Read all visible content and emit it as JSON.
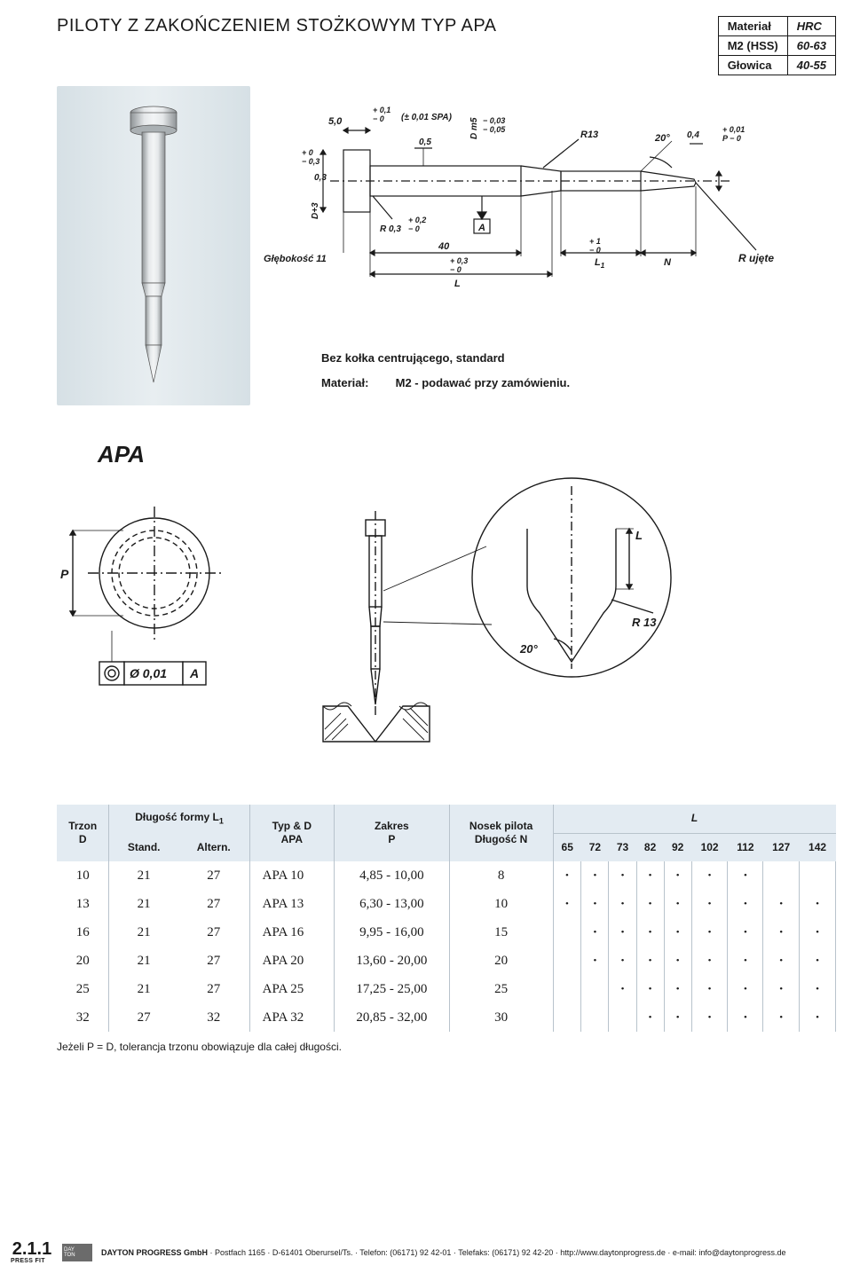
{
  "header": {
    "title_light": "PILOTY Z",
    "title_bold": "ZAKOŃCZENIEM STOŻKOWYM TYP APA",
    "material_rows": [
      {
        "l": "Materiał",
        "r": "HRC"
      },
      {
        "l": "M2 (HSS)",
        "r": "60-63"
      },
      {
        "l": "Głowica",
        "r": "40-55"
      }
    ]
  },
  "tech_drawing": {
    "dim_50": "5,0",
    "tol_50": "+ 0,1\n− 0",
    "spa": "(± 0,01 SPA)",
    "dim_03": "0,3",
    "tol_03": "+ 0\n− 0,3",
    "d_plus3": "D+3",
    "dim_05": "0,5",
    "d_m5": "D m5",
    "tol_dm5": "− 0,03\n− 0,05",
    "r13": "R13",
    "angle": "20°",
    "dim_04": "0,4",
    "p_tol": "+ 0,01\nP − 0",
    "r03": "R 0,3",
    "tol_r03": "+ 0,2\n− 0",
    "a_box": "A",
    "depth": "Głębokość 11",
    "dim_40": "40",
    "l_tol": "+ 0,3\n− 0",
    "l_label": "L",
    "l1_label": "L₁",
    "l1_tol": "+ 1\n− 0",
    "n_label": "N",
    "r_ujete": "R ujęte"
  },
  "notes": {
    "line1": "Bez kołka centrującego, standard",
    "line2_label": "Materiał:",
    "line2_value": "M2 - podawać przy zamówieniu."
  },
  "apa": {
    "heading": "APA",
    "p_label": "P",
    "conc": "Ø 0,01",
    "conc_a": "A",
    "tip_angle": "20°",
    "tip_l": "L",
    "tip_r": "R 13"
  },
  "table": {
    "headers": {
      "trzon": "Trzon\nD",
      "l1": "Długość formy L₁",
      "l1_sub1": "Stand.",
      "l1_sub2": "Altern.",
      "typ": "Typ & D\nAPA",
      "zakres": "Zakres\nP",
      "nosek": "Nosek pilota\nDługość N",
      "l_group": "L",
      "l_cols": [
        "65",
        "72",
        "73",
        "82",
        "92",
        "102",
        "112",
        "127",
        "142"
      ]
    },
    "rows": [
      {
        "d": "10",
        "stand": "21",
        "alt": "27",
        "typ": "APA 10",
        "zakres": "4,85 - 10,00",
        "n": "8",
        "dots": [
          "•",
          "•",
          "•",
          "•",
          "•",
          "•",
          "•",
          "",
          ""
        ]
      },
      {
        "d": "13",
        "stand": "21",
        "alt": "27",
        "typ": "APA 13",
        "zakres": "6,30 - 13,00",
        "n": "10",
        "dots": [
          "•",
          "•",
          "•",
          "•",
          "•",
          "•",
          "•",
          "•",
          "•"
        ]
      },
      {
        "d": "16",
        "stand": "21",
        "alt": "27",
        "typ": "APA 16",
        "zakres": "9,95 - 16,00",
        "n": "15",
        "dots": [
          "",
          "•",
          "•",
          "•",
          "•",
          "•",
          "•",
          "•",
          "•"
        ]
      },
      {
        "d": "20",
        "stand": "21",
        "alt": "27",
        "typ": "APA 20",
        "zakres": "13,60 - 20,00",
        "n": "20",
        "dots": [
          "",
          "•",
          "•",
          "•",
          "•",
          "•",
          "•",
          "•",
          "•"
        ]
      },
      {
        "d": "25",
        "stand": "21",
        "alt": "27",
        "typ": "APA 25",
        "zakres": "17,25 - 25,00",
        "n": "25",
        "dots": [
          "",
          "",
          "•",
          "•",
          "•",
          "•",
          "•",
          "•",
          "•"
        ]
      },
      {
        "d": "32",
        "stand": "27",
        "alt": "32",
        "typ": "APA 32",
        "zakres": "20,85 - 32,00",
        "n": "30",
        "dots": [
          "",
          "",
          "",
          "•",
          "•",
          "•",
          "•",
          "•",
          "•"
        ]
      }
    ],
    "footnote": "Jeżeli P = D, tolerancja trzonu obowiązuje dla całej długości."
  },
  "footer": {
    "page": "2.1.1",
    "sub": "PRESS FIT",
    "logo_top": "DAY",
    "logo_bot": "TON",
    "text": "DAYTON PROGRESS GmbH · Postfach 1165 · D-61401 Oberursel/Ts. · Telefon: (06171) 92 42-01 · Telefaks: (06171) 92 42-20 · http://www.daytonprogress.de · e-mail: info@daytonprogress.de"
  },
  "colors": {
    "header_bg": "#e3ebf2",
    "line": "#1a1a1a",
    "photo_bg": "#dce5ea",
    "steel_light": "#d9d9d9",
    "steel_dark": "#9aa0a3"
  }
}
